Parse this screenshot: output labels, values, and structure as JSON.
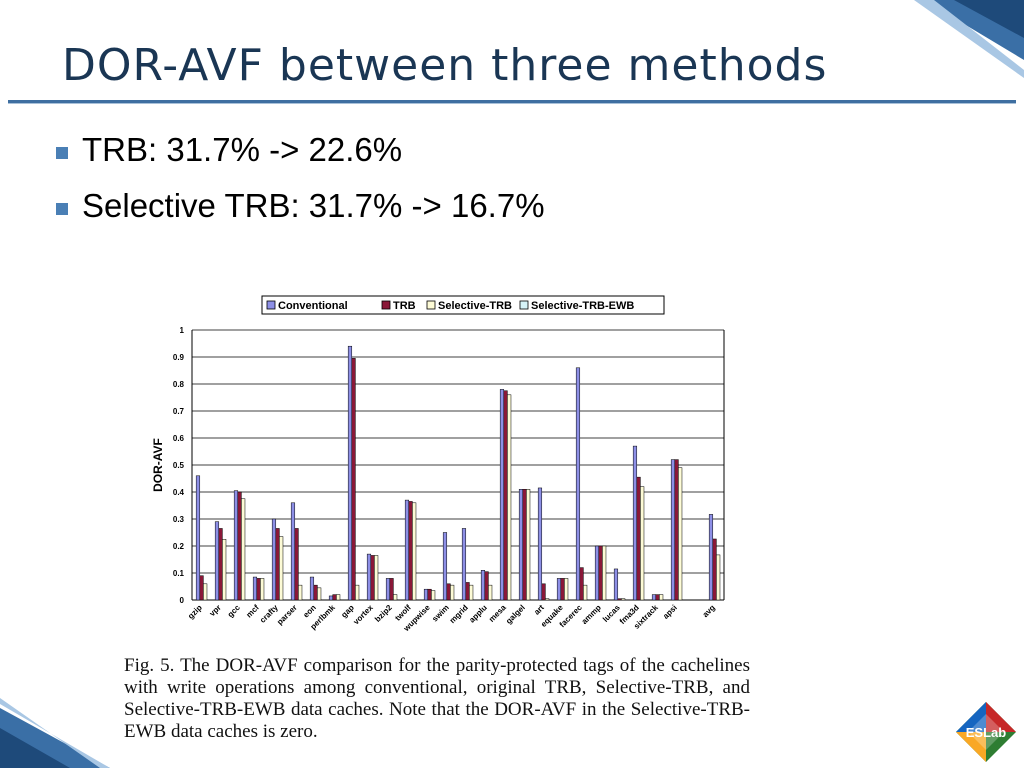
{
  "slide": {
    "title": "DOR-AVF between three methods",
    "bullets": [
      "TRB: 31.7% -> 22.6%",
      "Selective TRB: 31.7% -> 16.7%"
    ],
    "caption": "Fig. 5.    The DOR-AVF comparison for the parity-protected tags of the cachelines with write operations among conventional, original TRB, Selective-TRB, and Selective-TRB-EWB data caches. Note that the DOR-AVF in the Selective-TRB-EWB data caches is zero.",
    "logo_text": "ESLab"
  },
  "colors": {
    "title": "#1a3654",
    "accent": "#3f6fa1",
    "conventional": "#8d8fe6",
    "trb": "#8a1838",
    "selective_trb": "#fdfbd6",
    "selective_trb_ewb": "#d6f3f8"
  },
  "chart_data": {
    "type": "bar",
    "ylabel": "DOR-AVF",
    "ylim": [
      0,
      1
    ],
    "yticks": [
      0,
      0.1,
      0.2,
      0.3,
      0.4,
      0.5,
      0.6,
      0.7,
      0.8,
      0.9,
      1
    ],
    "grid": true,
    "legend_position": "top",
    "categories": [
      "gzip",
      "vpr",
      "gcc",
      "mcf",
      "crafty",
      "parser",
      "eon",
      "perlbmk",
      "gap",
      "vortex",
      "bzip2",
      "twolf",
      "wupwise",
      "swim",
      "mgrid",
      "applu",
      "mesa",
      "galgel",
      "art",
      "equake",
      "facerec",
      "ammp",
      "lucas",
      "fma3d",
      "sixtrack",
      "apsi",
      "",
      "avg"
    ],
    "series": [
      {
        "name": "Conventional",
        "color": "#8d8fe6",
        "values": [
          0.46,
          0.29,
          0.405,
          0.085,
          0.3,
          0.36,
          0.085,
          0.015,
          0.94,
          0.17,
          0.08,
          0.37,
          0.04,
          0.25,
          0.265,
          0.11,
          0.78,
          0.41,
          0.415,
          0.08,
          0.86,
          0.2,
          0.115,
          0.57,
          0.02,
          0.52,
          0,
          0.317
        ]
      },
      {
        "name": "TRB",
        "color": "#8a1838",
        "values": [
          0.09,
          0.265,
          0.4,
          0.08,
          0.265,
          0.265,
          0.055,
          0.02,
          0.895,
          0.165,
          0.08,
          0.365,
          0.04,
          0.06,
          0.065,
          0.105,
          0.775,
          0.41,
          0.06,
          0.08,
          0.12,
          0.2,
          0.005,
          0.455,
          0.02,
          0.52,
          0,
          0.226
        ]
      },
      {
        "name": "Selective-TRB",
        "color": "#fdfbd6",
        "values": [
          0.06,
          0.225,
          0.375,
          0.08,
          0.235,
          0.055,
          0.045,
          0.02,
          0.055,
          0.165,
          0.02,
          0.36,
          0.035,
          0.055,
          0.055,
          0.055,
          0.76,
          0.41,
          0.005,
          0.08,
          0.055,
          0.2,
          0.005,
          0.42,
          0.02,
          0.49,
          0,
          0.167
        ]
      },
      {
        "name": "Selective-TRB-EWB",
        "color": "#d6f3f8",
        "values": [
          0,
          0,
          0,
          0,
          0,
          0,
          0,
          0,
          0,
          0,
          0,
          0,
          0,
          0,
          0,
          0,
          0,
          0,
          0,
          0,
          0,
          0,
          0,
          0,
          0,
          0,
          0,
          0
        ]
      }
    ]
  }
}
